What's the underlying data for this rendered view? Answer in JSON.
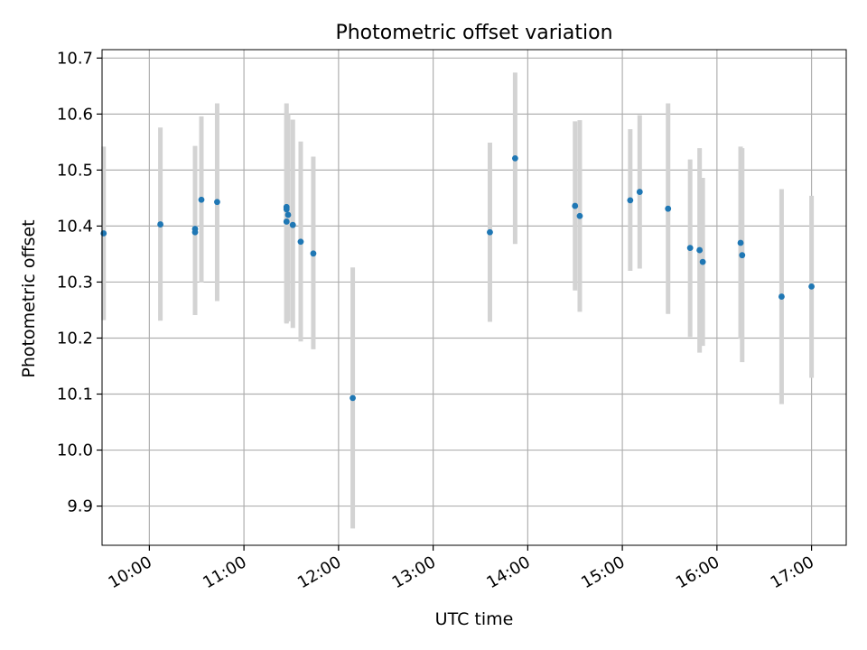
{
  "chart_data": {
    "type": "scatter",
    "title": "Photometric offset variation",
    "xlabel": "UTC time",
    "ylabel": "Photometric offset",
    "x_unit": "UTC time (HH:MM)",
    "xlim": [
      "09:30",
      "17:22"
    ],
    "ylim": [
      9.83,
      10.715
    ],
    "x_ticks": [
      "10:00",
      "11:00",
      "12:00",
      "13:00",
      "14:00",
      "15:00",
      "16:00",
      "17:00"
    ],
    "y_ticks": [
      "9.9",
      "10.0",
      "10.1",
      "10.2",
      "10.3",
      "10.4",
      "10.5",
      "10.6",
      "10.7"
    ],
    "grid": true,
    "marker_color": "#1f77b4",
    "errorbar_color": "#d3d3d3",
    "points": [
      {
        "x": "09:31",
        "y": 10.387,
        "ylow": 10.232,
        "yhigh": 10.542
      },
      {
        "x": "10:07",
        "y": 10.403,
        "ylow": 10.231,
        "yhigh": 10.576
      },
      {
        "x": "10:29",
        "y": 10.395,
        "ylow": 10.241,
        "yhigh": 10.543
      },
      {
        "x": "10:29",
        "y": 10.389,
        "ylow": 10.241,
        "yhigh": 10.543
      },
      {
        "x": "10:33",
        "y": 10.447,
        "ylow": 10.299,
        "yhigh": 10.596
      },
      {
        "x": "10:43",
        "y": 10.443,
        "ylow": 10.266,
        "yhigh": 10.619
      },
      {
        "x": "11:27",
        "y": 10.434,
        "ylow": 10.228,
        "yhigh": 10.619
      },
      {
        "x": "11:27",
        "y": 10.43,
        "ylow": 10.228,
        "yhigh": 10.6
      },
      {
        "x": "11:28",
        "y": 10.42,
        "ylow": 10.23,
        "yhigh": 10.6
      },
      {
        "x": "11:27",
        "y": 10.408,
        "ylow": 10.226,
        "yhigh": 10.59
      },
      {
        "x": "11:31",
        "y": 10.402,
        "ylow": 10.218,
        "yhigh": 10.59
      },
      {
        "x": "11:36",
        "y": 10.372,
        "ylow": 10.194,
        "yhigh": 10.551
      },
      {
        "x": "11:44",
        "y": 10.351,
        "ylow": 10.18,
        "yhigh": 10.524
      },
      {
        "x": "12:09",
        "y": 10.093,
        "ylow": 9.86,
        "yhigh": 10.326
      },
      {
        "x": "13:36",
        "y": 10.389,
        "ylow": 10.229,
        "yhigh": 10.549
      },
      {
        "x": "13:52",
        "y": 10.521,
        "ylow": 10.368,
        "yhigh": 10.674
      },
      {
        "x": "14:30",
        "y": 10.436,
        "ylow": 10.285,
        "yhigh": 10.587
      },
      {
        "x": "14:33",
        "y": 10.418,
        "ylow": 10.247,
        "yhigh": 10.589
      },
      {
        "x": "15:05",
        "y": 10.446,
        "ylow": 10.32,
        "yhigh": 10.573
      },
      {
        "x": "15:11",
        "y": 10.461,
        "ylow": 10.324,
        "yhigh": 10.598
      },
      {
        "x": "15:29",
        "y": 10.431,
        "ylow": 10.243,
        "yhigh": 10.619
      },
      {
        "x": "15:43",
        "y": 10.361,
        "ylow": 10.202,
        "yhigh": 10.519
      },
      {
        "x": "15:49",
        "y": 10.357,
        "ylow": 10.174,
        "yhigh": 10.539
      },
      {
        "x": "15:51",
        "y": 10.336,
        "ylow": 10.186,
        "yhigh": 10.486
      },
      {
        "x": "16:15",
        "y": 10.37,
        "ylow": 10.199,
        "yhigh": 10.542
      },
      {
        "x": "16:16",
        "y": 10.348,
        "ylow": 10.157,
        "yhigh": 10.539
      },
      {
        "x": "16:41",
        "y": 10.274,
        "ylow": 10.082,
        "yhigh": 10.466
      },
      {
        "x": "17:00",
        "y": 10.292,
        "ylow": 10.129,
        "yhigh": 10.454
      }
    ]
  }
}
